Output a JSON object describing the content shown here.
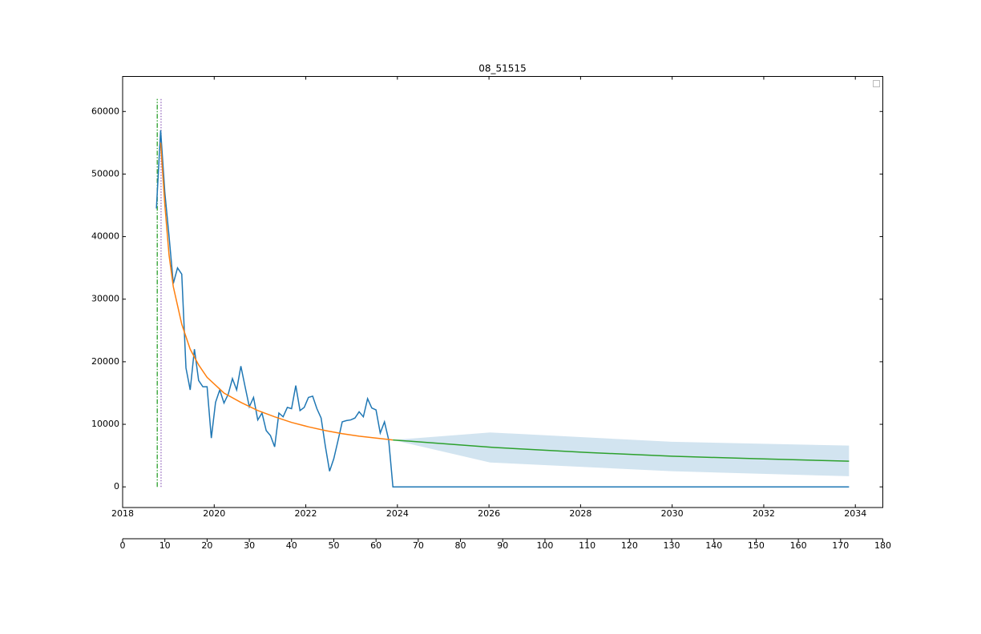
{
  "chart_data": {
    "type": "line",
    "title": "08_51515",
    "xlim": [
      0,
      180
    ],
    "xticks": [
      0,
      10,
      20,
      30,
      40,
      50,
      60,
      70,
      80,
      90,
      100,
      110,
      120,
      130,
      140,
      150,
      160,
      170,
      180
    ],
    "ylim": [
      -3300,
      65600
    ],
    "yticks": [
      0,
      10000,
      20000,
      30000,
      40000,
      50000,
      60000
    ],
    "date_axis": {
      "xlim": [
        2018,
        2034.6
      ],
      "xticks": [
        2018,
        2020,
        2022,
        2024,
        2026,
        2028,
        2030,
        2032,
        2034
      ]
    },
    "series": [
      {
        "color": "#1f77b4",
        "x": [
          8,
          9,
          10,
          11,
          12,
          13,
          14,
          15,
          16,
          17,
          18,
          19,
          20,
          21,
          22,
          23,
          24,
          25,
          26,
          27,
          28,
          29,
          30,
          31,
          32,
          33,
          34,
          35,
          36,
          37,
          38,
          39,
          40,
          41,
          42,
          43,
          44,
          45,
          46,
          47,
          48,
          49,
          50,
          51,
          52,
          53,
          54,
          55,
          56,
          57,
          58,
          59,
          60,
          61,
          62,
          63,
          64,
          172
        ],
        "values": [
          44500,
          57000,
          47000,
          40000,
          32500,
          35000,
          34000,
          19000,
          15500,
          22000,
          17000,
          16000,
          16000,
          7800,
          13500,
          15500,
          13400,
          14800,
          17300,
          15500,
          19300,
          16000,
          12800,
          14300,
          10700,
          11800,
          9000,
          8200,
          6400,
          11800,
          11200,
          12700,
          12500,
          16200,
          12200,
          12700,
          14300,
          14500,
          12500,
          11000,
          6500,
          2500,
          4500,
          7400,
          10400,
          10600,
          10700,
          11000,
          12000,
          11200,
          14100,
          12600,
          12300,
          8600,
          10400,
          7500,
          0,
          0
        ]
      },
      {
        "color": "#ff7f0e",
        "x": [
          9,
          10,
          11,
          12,
          14,
          16,
          18,
          20,
          24,
          28,
          32,
          36,
          40,
          44,
          48,
          52,
          56,
          60,
          64
        ],
        "values": [
          55000,
          45000,
          37000,
          32000,
          26000,
          22000,
          19500,
          17500,
          15000,
          13500,
          12200,
          11200,
          10300,
          9600,
          9000,
          8500,
          8100,
          7800,
          7500
        ]
      },
      {
        "color": "#2ca02c",
        "x": [
          64,
          88,
          110,
          130,
          150,
          172
        ],
        "values": [
          7500,
          6300,
          5500,
          4900,
          4500,
          4100
        ]
      }
    ],
    "band": {
      "color": "#1f77b4",
      "x": [
        64,
        87,
        130,
        172
      ],
      "lower": [
        7500,
        3900,
        2500,
        1700
      ],
      "upper": [
        7500,
        8700,
        7200,
        6600
      ]
    },
    "vlines": [
      {
        "x": 8.2,
        "y_range": [
          0,
          62000
        ],
        "color": "#2ca02c",
        "style": "dashdot"
      },
      {
        "x": 9.1,
        "y_range": [
          0,
          62000
        ],
        "color": "#9467bd",
        "style": "dotted"
      }
    ]
  }
}
